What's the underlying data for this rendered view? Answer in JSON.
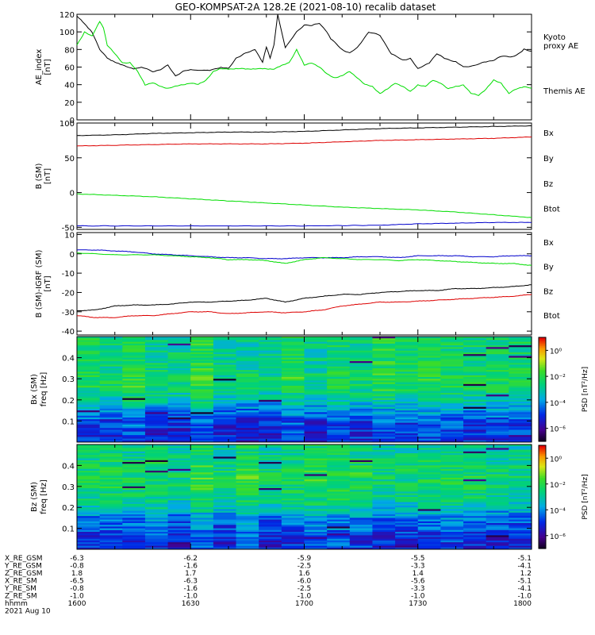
{
  "title": "GEO-KOMPSAT-2A 128.2E (2021-08-10) recalib dataset",
  "panels": [
    {
      "id": "ae",
      "ylabel_lines": [
        "AE_index",
        "[nT]"
      ],
      "ylim": [
        0,
        120
      ],
      "yticks": [
        0,
        20,
        40,
        60,
        80,
        100,
        120
      ],
      "legend": [
        {
          "label": "Kyoto proxy AE",
          "lines": [
            "Kyoto",
            "proxy AE"
          ],
          "color": "#00dd00"
        },
        {
          "label": "Themis AE",
          "lines": [
            "Themis AE"
          ],
          "color": "#000000"
        }
      ]
    },
    {
      "id": "bsm",
      "ylabel_lines": [
        "B (SM)",
        "[nT]"
      ],
      "ylim": [
        -53,
        100
      ],
      "yticks": [
        -50,
        0,
        50,
        100
      ],
      "legend": [
        {
          "label": "Bx",
          "lines": [
            "Bx"
          ],
          "color": "#0000cc"
        },
        {
          "label": "By",
          "lines": [
            "By"
          ],
          "color": "#00dd00"
        },
        {
          "label": "Bz",
          "lines": [
            "Bz"
          ],
          "color": "#dd0000"
        },
        {
          "label": "Btot",
          "lines": [
            "Btot"
          ],
          "color": "#000000"
        }
      ]
    },
    {
      "id": "bigrf",
      "ylabel_lines": [
        "B (SM)-IGRF (SM)",
        "[nT]"
      ],
      "ylim": [
        -42,
        11
      ],
      "yticks": [
        -40,
        -30,
        -20,
        -10,
        0,
        10
      ],
      "legend": [
        {
          "label": "Bx",
          "lines": [
            "Bx"
          ],
          "color": "#0000cc"
        },
        {
          "label": "By",
          "lines": [
            "By"
          ],
          "color": "#00dd00"
        },
        {
          "label": "Bz",
          "lines": [
            "Bz"
          ],
          "color": "#dd0000"
        },
        {
          "label": "Btot",
          "lines": [
            "Btot"
          ],
          "color": "#000000"
        }
      ]
    },
    {
      "id": "spec_bx",
      "ylabel_lines": [
        "Bx (SM)",
        "freq [Hz]"
      ],
      "ylim": [
        0,
        0.5
      ],
      "yticks": [
        0.1,
        0.2,
        0.3,
        0.4
      ],
      "colorbar_label": "PSD [nT²/Hz]",
      "colorbar_ticks": [
        "10⁰",
        "10⁻²",
        "10⁻⁴",
        "10⁻⁶"
      ]
    },
    {
      "id": "spec_bz",
      "ylabel_lines": [
        "Bz (SM)",
        "freq [Hz]"
      ],
      "ylim": [
        0,
        0.5
      ],
      "yticks": [
        0.1,
        0.2,
        0.3,
        0.4
      ],
      "colorbar_label": "PSD [nT²/Hz]",
      "colorbar_ticks": [
        "10⁰",
        "10⁻²",
        "10⁻⁴",
        "10⁻⁶"
      ]
    }
  ],
  "ephemeris": {
    "rows": [
      {
        "label": "X_RE_GSM",
        "values": [
          "-6.3",
          "-6.2",
          "-5.9",
          "-5.5",
          "-5.1"
        ]
      },
      {
        "label": "Y_RE_GSM",
        "values": [
          "-0.8",
          "-1.6",
          "-2.5",
          "-3.3",
          "-4.1"
        ]
      },
      {
        "label": "Z_RE_GSM",
        "values": [
          "1.8",
          "1.7",
          "1.6",
          "1.4",
          "1.2"
        ]
      },
      {
        "label": "X_RE_SM",
        "values": [
          "-6.5",
          "-6.3",
          "-6.0",
          "-5.6",
          "-5.1"
        ]
      },
      {
        "label": "Y_RE_SM",
        "values": [
          "-0.8",
          "-1.6",
          "-2.5",
          "-3.3",
          "-4.1"
        ]
      },
      {
        "label": "Z_RE_SM",
        "values": [
          "-1.0",
          "-1.0",
          "-1.0",
          "-1.0",
          "-1.0"
        ]
      },
      {
        "label": "hhmm",
        "values": [
          "1600",
          "1630",
          "1700",
          "1730",
          "1800"
        ]
      }
    ],
    "date": "2021 Aug 10"
  },
  "chart_data": [
    {
      "type": "line",
      "panel": "AE index",
      "xlim": [
        "16:00",
        "18:00"
      ],
      "ylim": [
        0,
        120
      ],
      "series": [
        {
          "name": "Themis AE",
          "color": "#000000",
          "x": [
            0,
            4,
            6,
            8,
            12,
            15,
            17,
            20,
            22,
            24,
            26,
            28,
            30,
            35,
            38,
            40,
            42,
            44,
            46,
            47,
            49,
            50,
            51,
            52,
            53,
            55,
            58,
            60,
            62,
            64,
            66,
            67,
            70,
            72,
            74,
            77,
            80,
            83,
            86,
            88,
            90,
            93,
            95,
            97,
            100,
            102,
            105,
            108,
            110,
            112,
            115,
            117,
            118,
            120
          ],
          "y": [
            118,
            100,
            80,
            70,
            62,
            58,
            60,
            55,
            57,
            62,
            50,
            55,
            57,
            56,
            60,
            58,
            70,
            75,
            78,
            80,
            66,
            83,
            70,
            85,
            120,
            82,
            100,
            108,
            107,
            110,
            100,
            92,
            80,
            76,
            82,
            100,
            96,
            75,
            68,
            70,
            58,
            65,
            75,
            70,
            66,
            60,
            62,
            66,
            68,
            72,
            72,
            76,
            80,
            78
          ]
        },
        {
          "name": "Kyoto proxy AE",
          "color": "#00dd00",
          "x": [
            0,
            2,
            4,
            6,
            7,
            8,
            10,
            12,
            14,
            16,
            18,
            20,
            22,
            24,
            26,
            28,
            30,
            32,
            34,
            36,
            38,
            40,
            44,
            48,
            52,
            56,
            58,
            60,
            62,
            64,
            66,
            68,
            70,
            72,
            74,
            76,
            78,
            80,
            82,
            84,
            86,
            88,
            90,
            92,
            94,
            96,
            98,
            100,
            102,
            104,
            106,
            108,
            110,
            112,
            114,
            116,
            118,
            120
          ],
          "y": [
            85,
            100,
            95,
            112,
            105,
            85,
            75,
            65,
            65,
            55,
            40,
            42,
            38,
            36,
            38,
            40,
            42,
            40,
            45,
            55,
            58,
            58,
            58,
            58,
            58,
            65,
            80,
            62,
            65,
            60,
            52,
            48,
            50,
            55,
            48,
            40,
            38,
            30,
            35,
            42,
            38,
            32,
            40,
            38,
            45,
            42,
            35,
            38,
            40,
            30,
            28,
            35,
            45,
            42,
            30,
            35,
            38,
            36
          ]
        }
      ]
    },
    {
      "type": "line",
      "panel": "B (SM)",
      "xlim": [
        "16:00",
        "18:00"
      ],
      "ylim": [
        -53,
        100
      ],
      "series": [
        {
          "name": "Bx",
          "color": "#0000cc",
          "x": [
            0,
            30,
            60,
            80,
            90,
            100,
            110,
            120
          ],
          "y": [
            -48,
            -48,
            -48,
            -47,
            -45,
            -44,
            -43,
            -43
          ]
        },
        {
          "name": "By",
          "color": "#00dd00",
          "x": [
            0,
            10,
            20,
            30,
            40,
            50,
            60,
            70,
            80,
            90,
            100,
            110,
            120
          ],
          "y": [
            -2,
            -4,
            -6,
            -9,
            -12,
            -15,
            -18,
            -21,
            -23,
            -25,
            -28,
            -32,
            -36
          ]
        },
        {
          "name": "Bz",
          "color": "#dd0000",
          "x": [
            0,
            10,
            20,
            30,
            40,
            50,
            60,
            70,
            80,
            90,
            100,
            110,
            120
          ],
          "y": [
            67,
            68,
            69,
            70,
            70,
            70,
            71,
            73,
            75,
            76,
            77,
            78,
            80
          ]
        },
        {
          "name": "Btot",
          "color": "#000000",
          "x": [
            0,
            10,
            20,
            30,
            40,
            50,
            60,
            70,
            80,
            90,
            100,
            110,
            120
          ],
          "y": [
            82,
            83,
            85,
            86,
            87,
            87,
            88,
            90,
            92,
            93,
            94,
            95,
            96
          ]
        }
      ]
    },
    {
      "type": "line",
      "panel": "B (SM)-IGRF (SM)",
      "xlim": [
        "16:00",
        "18:00"
      ],
      "ylim": [
        -42,
        11
      ],
      "series": [
        {
          "name": "Bx",
          "color": "#0000cc",
          "x": [
            0,
            5,
            10,
            15,
            20,
            25,
            30,
            35,
            40,
            45,
            50,
            55,
            60,
            65,
            70,
            75,
            80,
            85,
            90,
            95,
            100,
            105,
            110,
            115,
            120
          ],
          "y": [
            2,
            2,
            1.5,
            1,
            0,
            -0.5,
            -1,
            -1.5,
            -2,
            -2,
            -2.5,
            -2.5,
            -2,
            -2,
            -2,
            -1.5,
            -1.5,
            -2,
            -1,
            -1,
            -1,
            -1.5,
            -1.5,
            -1,
            -1
          ]
        },
        {
          "name": "By",
          "color": "#00dd00",
          "x": [
            0,
            5,
            10,
            15,
            20,
            25,
            30,
            35,
            40,
            45,
            50,
            55,
            60,
            65,
            70,
            75,
            80,
            85,
            90,
            95,
            100,
            105,
            110,
            115,
            120
          ],
          "y": [
            0.5,
            0,
            -0.5,
            -0.5,
            -0.5,
            -1,
            -1.5,
            -2,
            -3,
            -3,
            -3.5,
            -5,
            -3,
            -2,
            -2.5,
            -3,
            -3,
            -3.5,
            -3,
            -3.5,
            -4,
            -4.5,
            -5,
            -5,
            -6
          ]
        },
        {
          "name": "Bz",
          "color": "#dd0000",
          "x": [
            0,
            5,
            10,
            15,
            20,
            25,
            30,
            35,
            40,
            45,
            50,
            55,
            60,
            65,
            70,
            75,
            80,
            85,
            90,
            95,
            100,
            105,
            110,
            115,
            120
          ],
          "y": [
            -32,
            -33,
            -33,
            -32,
            -32,
            -31,
            -30,
            -30,
            -31,
            -30.5,
            -30,
            -30.5,
            -30,
            -29,
            -27,
            -26,
            -25,
            -25,
            -24.5,
            -24,
            -23.5,
            -23,
            -22.5,
            -22,
            -21
          ]
        },
        {
          "name": "Btot",
          "color": "#000000",
          "x": [
            0,
            5,
            10,
            15,
            20,
            25,
            30,
            35,
            40,
            45,
            50,
            55,
            60,
            65,
            70,
            75,
            80,
            85,
            90,
            95,
            100,
            105,
            110,
            115,
            120
          ],
          "y": [
            -29.5,
            -29,
            -27,
            -26.5,
            -26.5,
            -26,
            -25,
            -25,
            -24.5,
            -24,
            -23,
            -25,
            -23,
            -22,
            -21,
            -21,
            -20,
            -19.5,
            -19,
            -19,
            -18,
            -18,
            -17.5,
            -17,
            -16
          ]
        }
      ]
    },
    {
      "type": "heatmap",
      "panel": "Bx (SM) spectrogram",
      "xlim": [
        "16:00",
        "18:00"
      ],
      "ylim": [
        0,
        0.5
      ],
      "zlabel": "PSD [nT²/Hz]",
      "zlim_log10": [
        -7,
        1
      ],
      "profile_freq": [
        0.0,
        0.05,
        0.1,
        0.15,
        0.2,
        0.25,
        0.3,
        0.35,
        0.4,
        0.45,
        0.5
      ],
      "profile_log10_psd": [
        -5,
        -5,
        -4.8,
        -4,
        -3,
        -2.4,
        -2.2,
        -2.4,
        -2.5,
        -2.5,
        -2.5
      ]
    },
    {
      "type": "heatmap",
      "panel": "Bz (SM) spectrogram",
      "xlim": [
        "16:00",
        "18:00"
      ],
      "ylim": [
        0,
        0.5
      ],
      "zlabel": "PSD [nT²/Hz]",
      "zlim_log10": [
        -7,
        1
      ],
      "profile_freq": [
        0.0,
        0.05,
        0.1,
        0.15,
        0.2,
        0.25,
        0.3,
        0.35,
        0.4,
        0.45,
        0.5
      ],
      "profile_log10_psd": [
        -5,
        -5,
        -4.5,
        -4.2,
        -3,
        -2.6,
        -2.3,
        -2.2,
        -2.4,
        -2.6,
        -2.8
      ]
    }
  ]
}
